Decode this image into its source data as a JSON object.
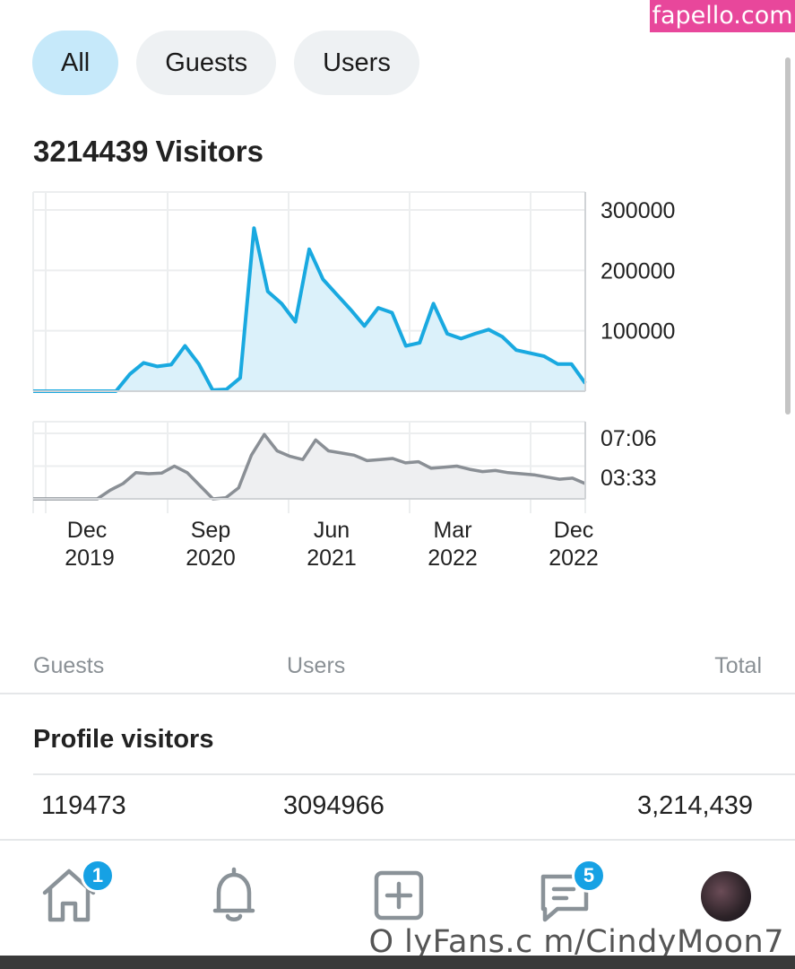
{
  "watermark": {
    "site": "fapello.com",
    "credit": "O lyFans.c m/CindyMoon7"
  },
  "filters": [
    {
      "label": "All",
      "active": true
    },
    {
      "label": "Guests",
      "active": false
    },
    {
      "label": "Users",
      "active": false
    }
  ],
  "summary": {
    "count": "3214439",
    "label": "Visitors"
  },
  "chart_data": [
    {
      "type": "area",
      "series": [
        {
          "values": [
            0,
            0,
            0,
            0,
            0,
            0,
            0,
            28000,
            47000,
            41000,
            44000,
            75000,
            45000,
            2000,
            3000,
            22000,
            270000,
            165000,
            145000,
            115000,
            235000,
            185000,
            160000,
            135000,
            108000,
            138000,
            130000,
            75000,
            80000,
            145000,
            95000,
            87000,
            95000,
            102000,
            90000,
            68000,
            63000,
            58000,
            45000,
            45000,
            13000
          ]
        }
      ],
      "yticks": [
        "300000",
        "200000",
        "100000"
      ],
      "ylim": [
        0,
        300000
      ],
      "color": "#19a9e0",
      "fill": "#dbf1fa",
      "grid": true
    },
    {
      "type": "area",
      "series": [
        {
          "values": [
            0,
            0,
            0,
            0,
            0,
            0,
            40,
            70,
            120,
            115,
            118,
            150,
            120,
            60,
            0,
            5,
            50,
            200,
            295,
            220,
            195,
            180,
            270,
            220,
            210,
            200,
            175,
            180,
            185,
            165,
            170,
            140,
            145,
            150,
            135,
            125,
            130,
            120,
            115,
            110,
            100,
            90,
            95,
            70
          ]
        }
      ],
      "yticks": [
        "07:06",
        "03:33"
      ],
      "color": "#8a8f95",
      "fill": "#eeeff1",
      "grid": true
    }
  ],
  "xaxis": [
    {
      "month": "Dec",
      "year": "2019"
    },
    {
      "month": "Sep",
      "year": "2020"
    },
    {
      "month": "Jun",
      "year": "2021"
    },
    {
      "month": "Mar",
      "year": "2022"
    },
    {
      "month": "Dec",
      "year": "2022"
    }
  ],
  "table": {
    "headers": {
      "guests": "Guests",
      "users": "Users",
      "total": "Total"
    },
    "section": "Profile visitors",
    "row": {
      "guests": "119473",
      "users": "3094966",
      "total": "3,214,439"
    }
  },
  "nav": {
    "home_badge": "1",
    "messages_badge": "5"
  }
}
